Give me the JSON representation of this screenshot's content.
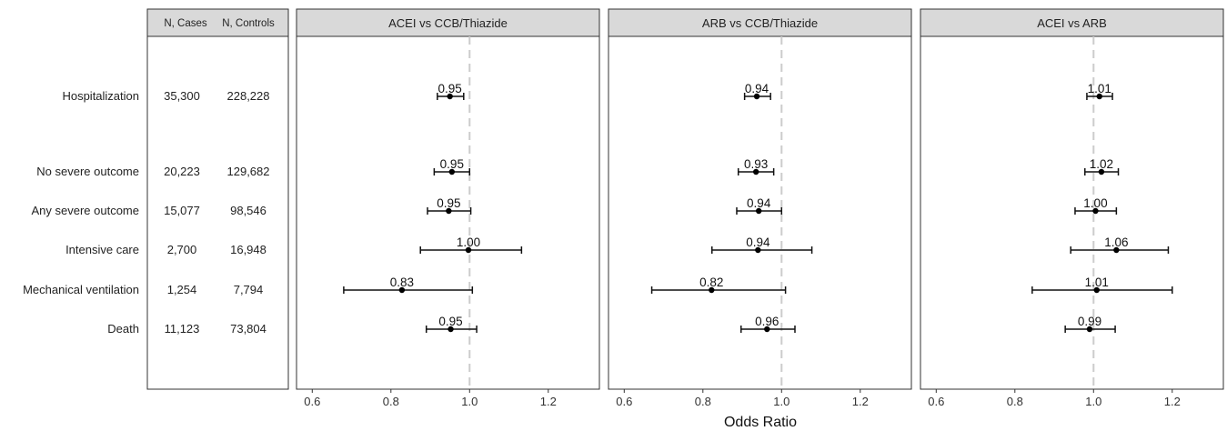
{
  "table": {
    "headers": [
      "N, Cases",
      "N, Controls"
    ],
    "rows": [
      {
        "label": "Hospitalization",
        "cases": "35,300",
        "controls": "228,228"
      },
      {
        "label": "No severe outcome",
        "cases": "20,223",
        "controls": "129,682"
      },
      {
        "label": "Any severe outcome",
        "cases": "15,077",
        "controls": "98,546"
      },
      {
        "label": "Intensive care",
        "cases": "2,700",
        "controls": "16,948"
      },
      {
        "label": "Mechanical ventilation",
        "cases": "1,254",
        "controls": "7,794"
      },
      {
        "label": "Death",
        "cases": "11,123",
        "controls": "73,804"
      }
    ]
  },
  "chart_data": {
    "type": "forest",
    "xlabel": "Odds Ratio",
    "xlim": [
      0.56,
      1.33
    ],
    "xticks": [
      0.6,
      0.8,
      1.0,
      1.2
    ],
    "xtick_labels": [
      "0.6",
      "0.8",
      "1.0",
      "1.2"
    ],
    "reference_line": 1.0,
    "grid": false,
    "panels": [
      {
        "title": "ACEI vs CCB/Thiazide",
        "points": [
          {
            "or": 0.95,
            "lo": 0.918,
            "hi": 0.985,
            "label": "0.95"
          },
          {
            "or": 0.955,
            "lo": 0.91,
            "hi": 1.0,
            "label": "0.95"
          },
          {
            "or": 0.947,
            "lo": 0.893,
            "hi": 1.003,
            "label": "0.95"
          },
          {
            "or": 0.997,
            "lo": 0.875,
            "hi": 1.132,
            "label": "1.00"
          },
          {
            "or": 0.828,
            "lo": 0.68,
            "hi": 1.007,
            "label": "0.83"
          },
          {
            "or": 0.952,
            "lo": 0.89,
            "hi": 1.018,
            "label": "0.95"
          }
        ]
      },
      {
        "title": "ARB vs CCB/Thiazide",
        "points": [
          {
            "or": 0.937,
            "lo": 0.906,
            "hi": 0.972,
            "label": "0.94"
          },
          {
            "or": 0.935,
            "lo": 0.89,
            "hi": 0.98,
            "label": "0.93"
          },
          {
            "or": 0.942,
            "lo": 0.886,
            "hi": 1.0,
            "label": "0.94"
          },
          {
            "or": 0.94,
            "lo": 0.823,
            "hi": 1.077,
            "label": "0.94"
          },
          {
            "or": 0.822,
            "lo": 0.67,
            "hi": 1.01,
            "label": "0.82"
          },
          {
            "or": 0.963,
            "lo": 0.897,
            "hi": 1.034,
            "label": "0.96"
          }
        ]
      },
      {
        "title": "ACEI vs ARB",
        "points": [
          {
            "or": 1.015,
            "lo": 0.983,
            "hi": 1.048,
            "label": "1.01"
          },
          {
            "or": 1.02,
            "lo": 0.978,
            "hi": 1.063,
            "label": "1.02"
          },
          {
            "or": 1.005,
            "lo": 0.953,
            "hi": 1.058,
            "label": "1.00"
          },
          {
            "or": 1.058,
            "lo": 0.942,
            "hi": 1.19,
            "label": "1.06"
          },
          {
            "or": 1.008,
            "lo": 0.844,
            "hi": 1.2,
            "label": "1.01"
          },
          {
            "or": 0.99,
            "lo": 0.928,
            "hi": 1.055,
            "label": "0.99"
          }
        ]
      }
    ]
  }
}
